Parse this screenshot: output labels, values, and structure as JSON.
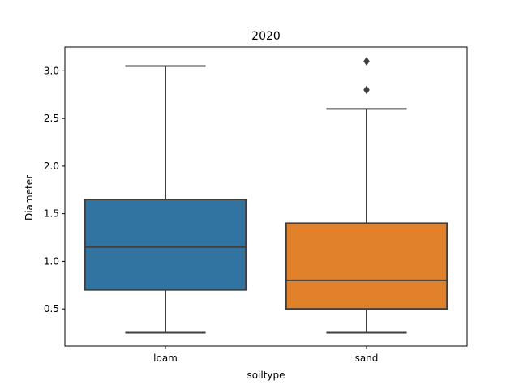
{
  "chart_data": {
    "type": "box",
    "title": "2020",
    "xlabel": "soiltype",
    "ylabel": "Diameter",
    "categories": [
      "loam",
      "sand"
    ],
    "boxes": [
      {
        "category": "loam",
        "whisker_low": 0.25,
        "q1": 0.7,
        "median": 1.15,
        "q3": 1.65,
        "whisker_high": 3.05,
        "outliers": [],
        "color": "#3274a1"
      },
      {
        "category": "sand",
        "whisker_low": 0.25,
        "q1": 0.5,
        "median": 0.8,
        "q3": 1.4,
        "whisker_high": 2.6,
        "outliers": [
          2.8,
          3.1
        ],
        "color": "#e1812c"
      }
    ],
    "ylim": [
      0.11,
      3.25
    ],
    "yticks": [
      0.5,
      1.0,
      1.5,
      2.0,
      2.5,
      3.0
    ],
    "ytick_labels": [
      "0.5",
      "1.0",
      "1.5",
      "2.0",
      "2.5",
      "3.0"
    ],
    "grid": false,
    "legend": null
  }
}
